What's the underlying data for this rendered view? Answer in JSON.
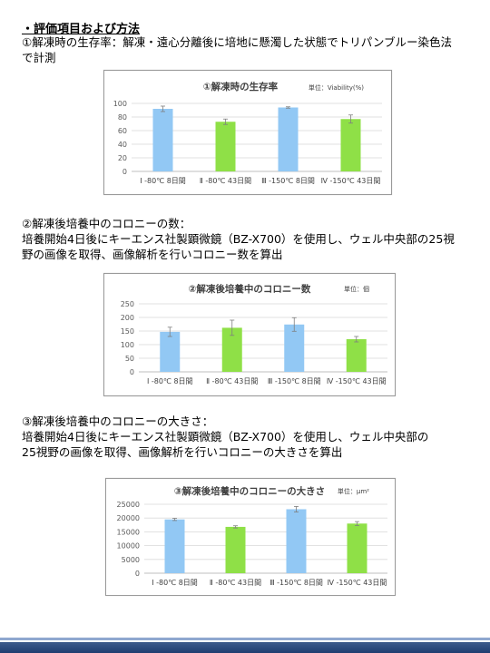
{
  "heading": "・評価項目および方法",
  "sections": [
    {
      "lines": [
        "①解凍時の生存率：解凍・遠心分離後に培地に懸濁した状態でトリパンブルー染色法",
        "で計測"
      ]
    },
    {
      "lines": [
        "②解凍後培養中のコロニーの数：",
        "培養開始4日後にキーエンス社製顕微鏡（BZ-X700）を使用し、ウェル中央部の25視",
        "野の画像を取得、画像解析を行いコロニー数を算出"
      ]
    },
    {
      "lines": [
        "③解凍後培養中のコロニーの大きさ：",
        "培養開始4日後にキーエンス社製顕微鏡（BZ-X700）を使用し、ウェル中央部の",
        "25視野の画像を取得、画像解析を行いコロニーの大きさを算出"
      ]
    }
  ],
  "colors": {
    "blue": "#92c8f4",
    "green": "#8fe047",
    "axis": "#bfbfbf",
    "grid": "#d9d9d9"
  },
  "chart_data": [
    {
      "type": "bar",
      "title": "①解凍時の生存率",
      "unit": "単位：Viability(%)",
      "categories": [
        "Ⅰ -80℃ 8日間",
        "Ⅱ -80℃ 43日間",
        "Ⅲ -150℃ 8日間",
        "Ⅳ -150℃ 43日間"
      ],
      "values": [
        92,
        73,
        94,
        77
      ],
      "errors": [
        4,
        4,
        1,
        6
      ],
      "bar_colors": [
        "blue",
        "green",
        "blue",
        "green"
      ],
      "ylim": [
        0,
        100
      ],
      "yticks": [
        "0",
        "20",
        "40",
        "60",
        "80",
        "100"
      ]
    },
    {
      "type": "bar",
      "title": "②解凍後培養中のコロニー数",
      "unit": "単位：個",
      "categories": [
        "Ⅰ -80℃ 8日間",
        "Ⅱ -80℃ 43日間",
        "Ⅲ -150℃ 8日間",
        "Ⅳ -150℃ 43日間"
      ],
      "values": [
        147,
        162,
        174,
        120
      ],
      "errors": [
        17,
        28,
        25,
        10
      ],
      "bar_colors": [
        "blue",
        "green",
        "blue",
        "green"
      ],
      "ylim": [
        0,
        250
      ],
      "yticks": [
        "0",
        "50",
        "100",
        "150",
        "200",
        "250"
      ]
    },
    {
      "type": "bar",
      "title": "③解凍後培養中のコロニーの大きさ",
      "unit": "単位：μm²",
      "categories": [
        "Ⅰ -80℃ 8日間",
        "Ⅱ -80℃ 43日間",
        "Ⅲ -150℃ 8日間",
        "Ⅳ -150℃ 43日間"
      ],
      "values": [
        19500,
        16800,
        23200,
        18000
      ],
      "errors": [
        400,
        400,
        1000,
        700
      ],
      "bar_colors": [
        "blue",
        "green",
        "blue",
        "green"
      ],
      "ylim": [
        0,
        25000
      ],
      "yticks": [
        "0",
        "5000",
        "10000",
        "15000",
        "20000",
        "25000"
      ]
    }
  ]
}
